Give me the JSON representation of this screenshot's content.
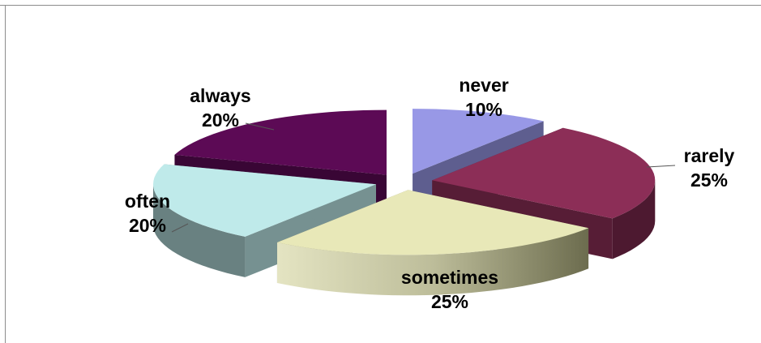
{
  "chart_data": {
    "type": "pie",
    "title": "",
    "exploded": true,
    "three_d": true,
    "legend": "none",
    "slices": [
      {
        "label": "never",
        "value": 10,
        "display": "10%",
        "color": "#9898e6"
      },
      {
        "label": "rarely",
        "value": 25,
        "display": "25%",
        "color": "#8c2e57"
      },
      {
        "label": "sometimes",
        "value": 25,
        "display": "25%",
        "color": "#e8e8b8"
      },
      {
        "label": "often",
        "value": 20,
        "display": "20%",
        "color": "#bfeaea"
      },
      {
        "label": "always",
        "value": 20,
        "display": "20%",
        "color": "#5c0a55"
      }
    ]
  }
}
